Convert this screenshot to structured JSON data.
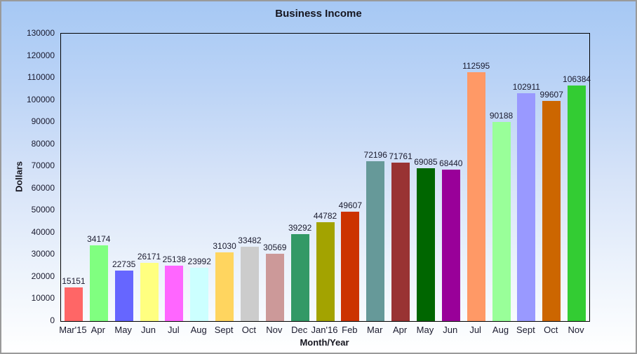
{
  "window": {
    "title": "Business Income"
  },
  "chart_data": {
    "type": "bar",
    "title": "Business Income",
    "xlabel": "Month/Year",
    "ylabel": "Dollars",
    "ylim": [
      0,
      130000
    ],
    "y_tick_step": 10000,
    "y_ticks": [
      0,
      10000,
      20000,
      30000,
      40000,
      50000,
      60000,
      70000,
      80000,
      90000,
      100000,
      110000,
      120000,
      130000
    ],
    "grid": false,
    "legend_position": "none",
    "categories": [
      "Mar'15",
      "Apr",
      "May",
      "Jun",
      "Jul",
      "Aug",
      "Sept",
      "Oct",
      "Nov",
      "Dec",
      "Jan'16",
      "Feb",
      "Mar",
      "Apr",
      "May",
      "Jun",
      "Jul",
      "Aug",
      "Sept",
      "Oct",
      "Nov"
    ],
    "values": [
      15151,
      34174,
      22735,
      26171,
      25138,
      23992,
      31030,
      33482,
      30569,
      39292,
      44782,
      49607,
      72196,
      71761,
      69085,
      68440,
      112595,
      90188,
      102911,
      99607,
      106384
    ],
    "value_labels": [
      "15151",
      "34174",
      "22735",
      "26171",
      "25138",
      "23992",
      "31030",
      "33482",
      "30569",
      "39292",
      "44782",
      "49607",
      "72196",
      "71761",
      "69085",
      "68440",
      "112595",
      "90188",
      "102911",
      "99607",
      "106384"
    ],
    "bar_colors": [
      "#FF6666",
      "#80FF80",
      "#6666FF",
      "#FFFF80",
      "#FF66FF",
      "#CCFFFF",
      "#FFD55F",
      "#CCCCCC",
      "#CC9999",
      "#339966",
      "#A3A300",
      "#CC3300",
      "#669999",
      "#993333",
      "#006600",
      "#990099",
      "#FF9966",
      "#99FF99",
      "#9999FF",
      "#CC6600",
      "#33CC33"
    ]
  },
  "colors": {
    "background_top": "#A6C8F4",
    "background_bottom": "#FFFFFF",
    "plot_border": "#000000",
    "frame_border": "#9A9A9A",
    "text": "#1A1A2E"
  }
}
